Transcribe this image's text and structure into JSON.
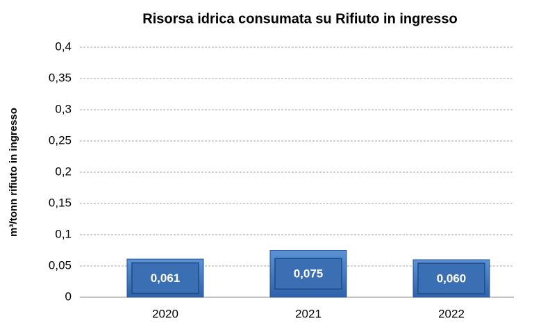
{
  "chart_data": {
    "type": "bar",
    "title": "Risorsa idrica consumata su Rifiuto in ingresso",
    "y_label": "m³/tonn rifiuto in ingresso",
    "categories": [
      "2020",
      "2021",
      "2022"
    ],
    "values": [
      0.061,
      0.075,
      0.06
    ],
    "value_labels": [
      "0,061",
      "0,075",
      "0,060"
    ],
    "color": "#3f74b8",
    "ylim": [
      0,
      0.4
    ],
    "yticks": [
      0,
      {
        "value": 0.05,
        "label": "0,05"
      },
      {
        "value": 0.1,
        "label": "0,1"
      },
      {
        "value": 0.15,
        "label": "0,15"
      },
      {
        "value": 0.2,
        "label": "0,2"
      },
      {
        "value": 0.25,
        "label": "0,25"
      },
      {
        "value": 0.3,
        "label": "0,3"
      },
      {
        "value": 0.35,
        "label": "0,35"
      },
      {
        "value": 0.4,
        "label": "0,4"
      }
    ],
    "grid": true
  }
}
